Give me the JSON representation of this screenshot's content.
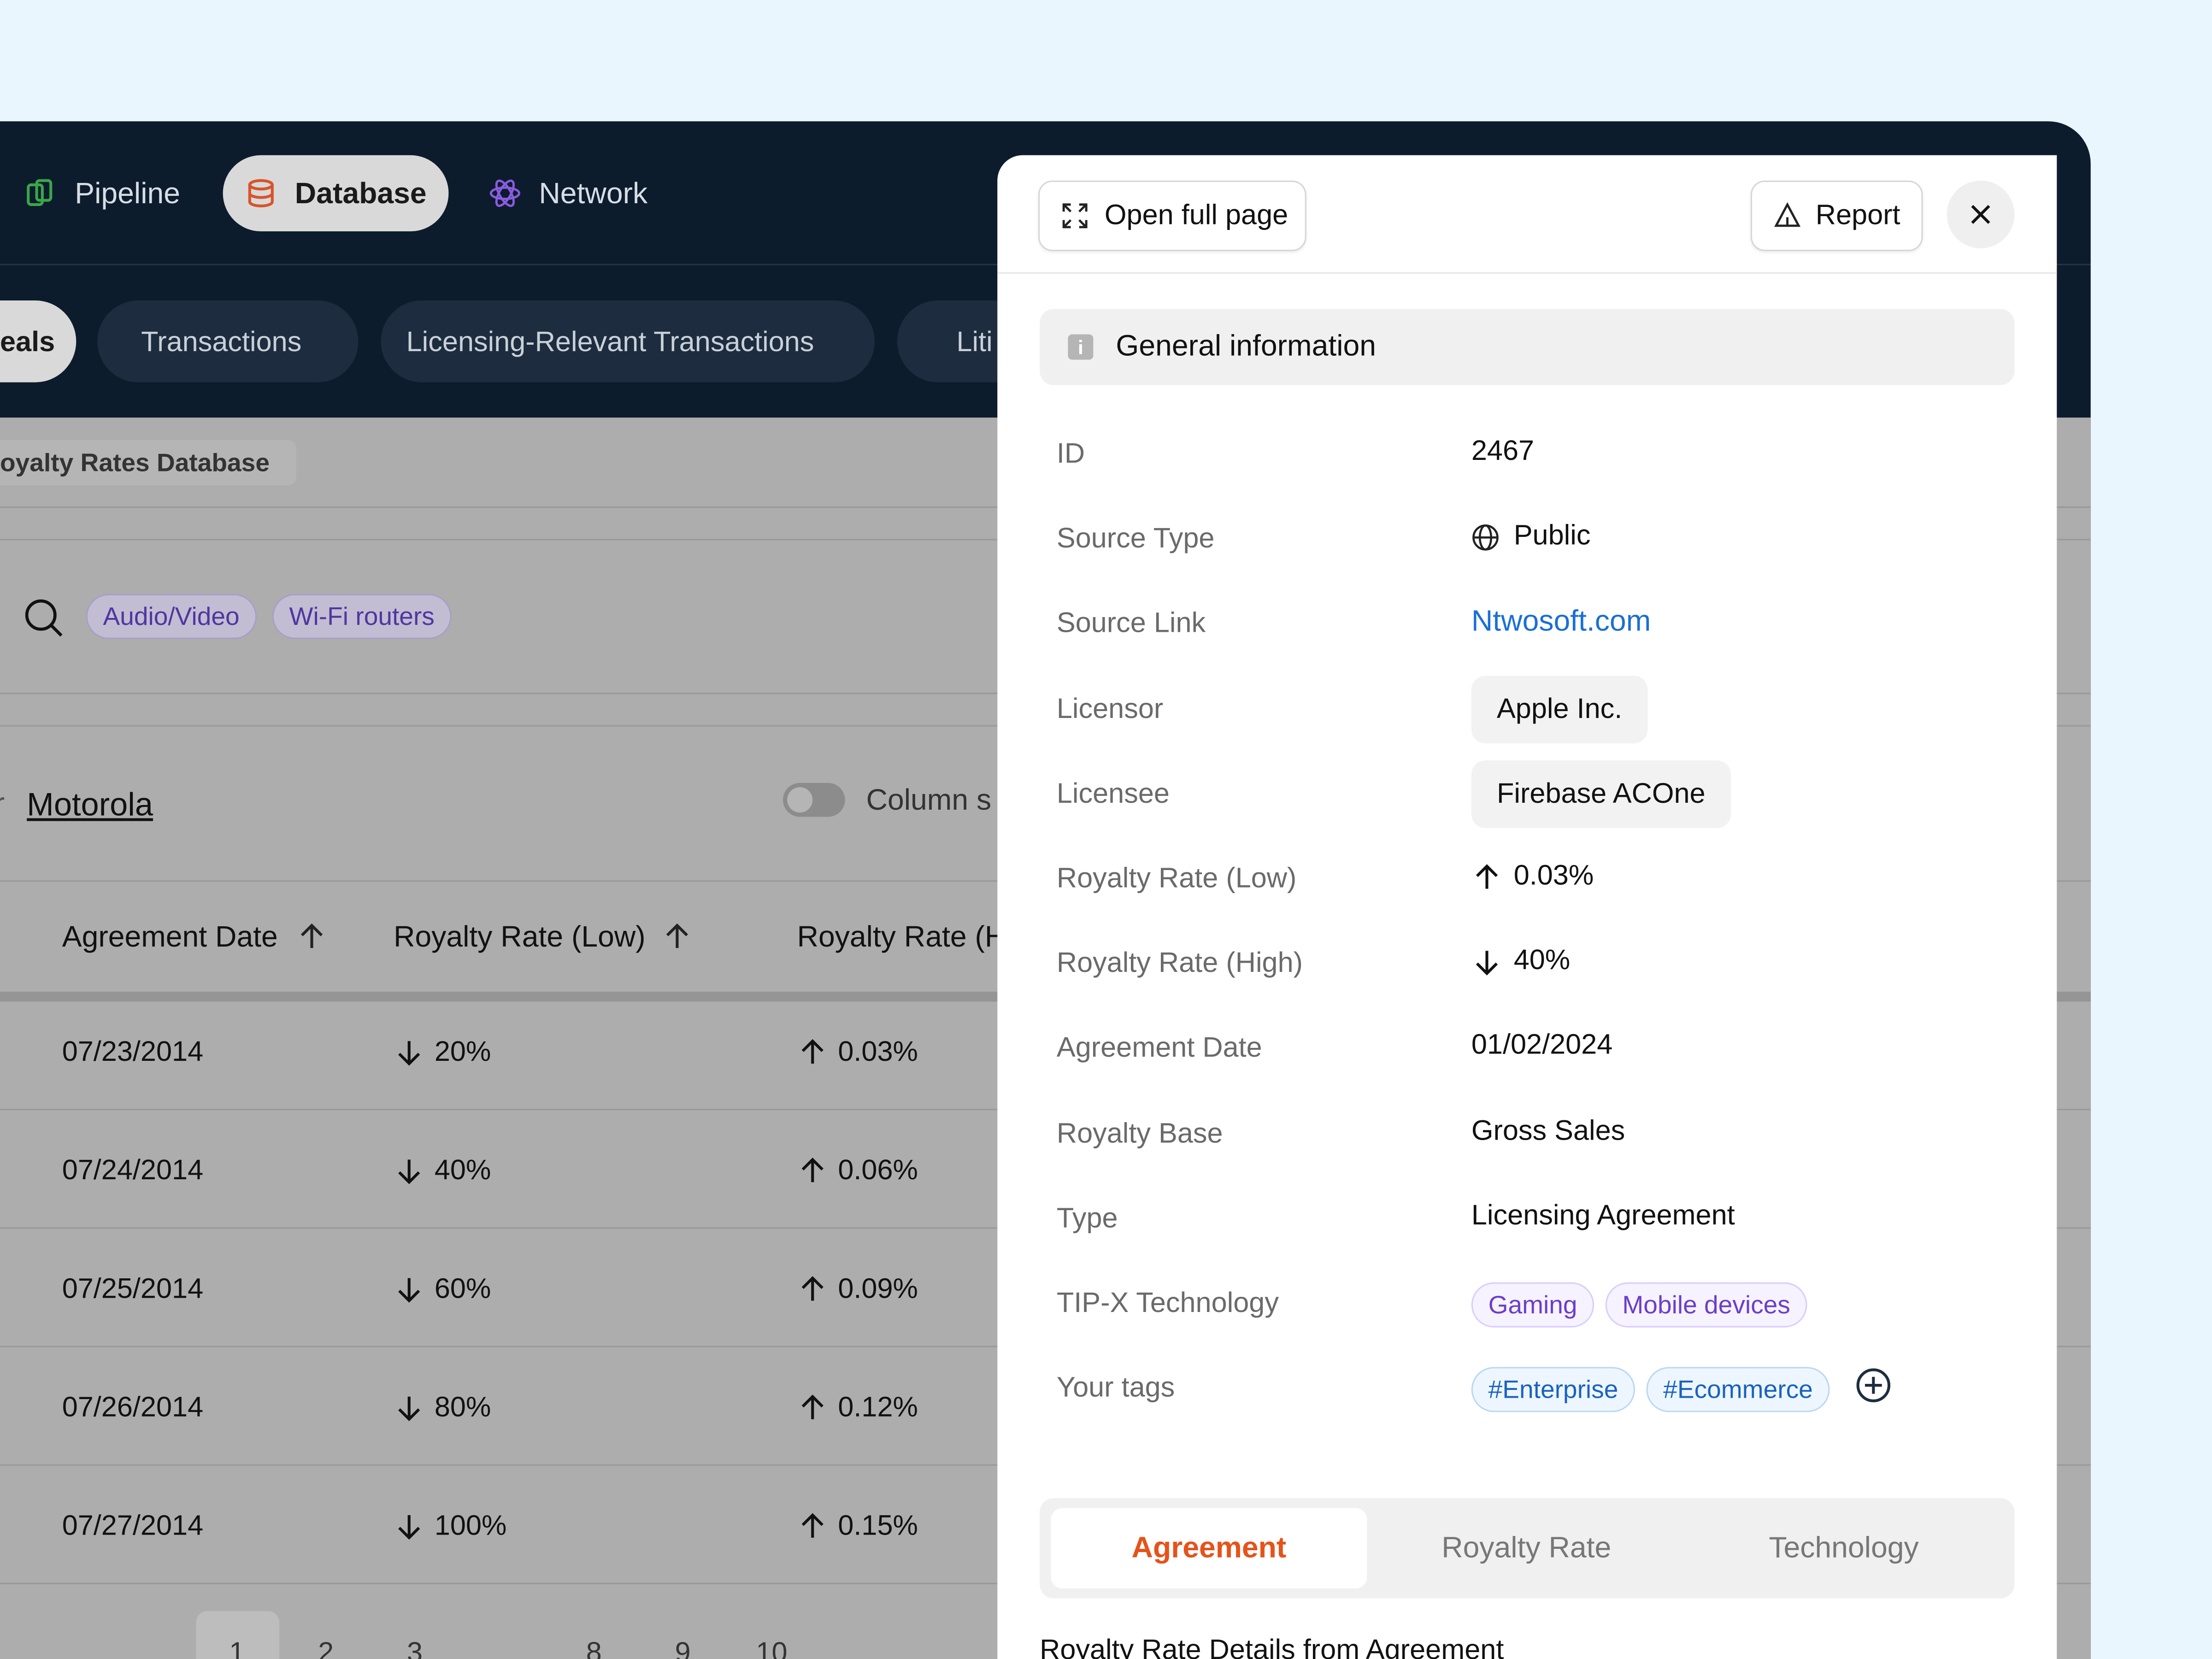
{
  "nav": {
    "items": [
      "Pipeline",
      "Database",
      "Network"
    ]
  },
  "tabs": [
    "eals",
    "Transactions",
    "Licensing-Relevant Transactions",
    "Liti"
  ],
  "breadcrumb": "oyalty Rates Database",
  "filters": {
    "chips": [
      "Audio/Video",
      "Wi-Fi routers"
    ]
  },
  "search_context": {
    "prefix": "r",
    "company": "Motorola"
  },
  "column_settings": "Column s",
  "table": {
    "headers": [
      "Agreement Date",
      "Royalty Rate (Low)",
      "Royalty Rate (H"
    ],
    "rows": [
      [
        {
          "text": "07/23/2014"
        },
        {
          "text": "20%",
          "trend": "down"
        },
        {
          "text": "0.03%",
          "trend": "up"
        }
      ],
      [
        {
          "text": "07/24/2014"
        },
        {
          "text": "40%",
          "trend": "down"
        },
        {
          "text": "0.06%",
          "trend": "up"
        }
      ],
      [
        {
          "text": "07/25/2014"
        },
        {
          "text": "60%",
          "trend": "down"
        },
        {
          "text": "0.09%",
          "trend": "up"
        }
      ],
      [
        {
          "text": "07/26/2014"
        },
        {
          "text": "80%",
          "trend": "down"
        },
        {
          "text": "0.12%",
          "trend": "up"
        }
      ],
      [
        {
          "text": "07/27/2014"
        },
        {
          "text": "100%",
          "trend": "down"
        },
        {
          "text": "0.15%",
          "trend": "up"
        }
      ]
    ]
  },
  "pagination": [
    "1",
    "2",
    "3",
    "8",
    "9",
    "10"
  ],
  "panel": {
    "open_full_page": "Open full page",
    "report": "Report",
    "section_title": "General information",
    "fields": [
      {
        "label": "ID",
        "value": "2467"
      },
      {
        "label": "Source Type",
        "value": "Public"
      },
      {
        "label": "Source Link",
        "value": "Ntwosoft.com"
      },
      {
        "label": "Licensor",
        "value": "Apple Inc."
      },
      {
        "label": "Licensee",
        "value": "Firebase ACOne"
      },
      {
        "label": "Royalty Rate (Low)",
        "value": "0.03%",
        "trend": "up"
      },
      {
        "label": "Royalty Rate (High)",
        "value": "40%",
        "trend": "down"
      },
      {
        "label": "Agreement Date",
        "value": "01/02/2024"
      },
      {
        "label": "Royalty Base",
        "value": "Gross Sales"
      },
      {
        "label": "Type",
        "value": "Licensing Agreement"
      },
      {
        "label": "TIP-X Technology",
        "values": [
          "Gaming",
          "Mobile devices"
        ]
      },
      {
        "label": "Your tags",
        "values": [
          "#Enterprise",
          "#Ecommerce"
        ]
      }
    ],
    "tabs": [
      "Agreement",
      "Royalty Rate",
      "Technology"
    ],
    "subheading": "Royalty Rate Details from Agreement"
  }
}
